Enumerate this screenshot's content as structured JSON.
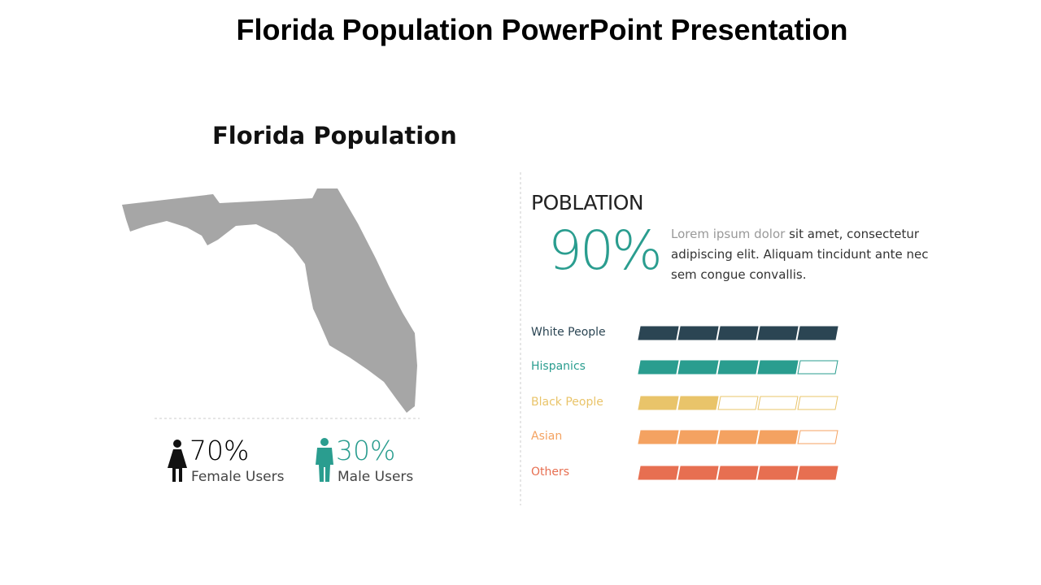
{
  "header": {
    "title": "Florida Population PowerPoint Presentation"
  },
  "map": {
    "title": "Florida Population"
  },
  "users": [
    {
      "percent": "70%",
      "label": "Female Users",
      "color": "#111111"
    },
    {
      "percent": "30%",
      "label": "Male Users",
      "color": "#2a9d8f"
    }
  ],
  "population": {
    "heading": "POBLATION",
    "percent": "90%",
    "text_muted": "Lorem ipsum dolor",
    "text": " sit amet, consectetur adipiscing elit. Aliquam tincidunt ante nec sem congue convallis."
  },
  "groups": {
    "max": 5,
    "rows": [
      {
        "label": "White People",
        "value": 5,
        "color": "#2b4553"
      },
      {
        "label": "Hispanics",
        "value": 4,
        "color": "#2a9d8f"
      },
      {
        "label": "Black People",
        "value": 2,
        "color": "#e9c46a"
      },
      {
        "label": "Asian",
        "value": 4,
        "color": "#f4a261"
      },
      {
        "label": "Others",
        "value": 5,
        "color": "#e76f51"
      }
    ]
  }
}
